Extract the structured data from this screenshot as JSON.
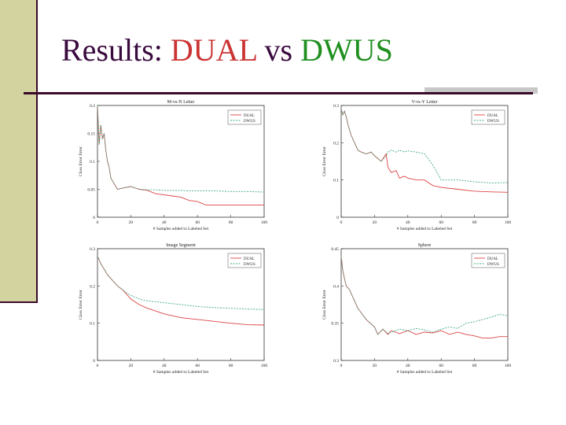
{
  "slide": {
    "title_prefix": "Results: ",
    "title_dual": "DUAL",
    "title_vs": " vs ",
    "title_dwus": "DWUS"
  },
  "colors": {
    "dual": "#dd4444",
    "dwus": "#44aa88",
    "early": "#667755"
  },
  "chart_data": [
    {
      "type": "line",
      "title": "M-vs-N Letter",
      "xlabel": "# Samples added to Labeled Set",
      "ylabel": "Class Error Error",
      "xlim": [
        0,
        100
      ],
      "ylim": [
        0,
        0.2
      ],
      "yticks": [
        0,
        0.05,
        0.1,
        0.15,
        0.2
      ],
      "xticks": [
        0,
        20,
        40,
        60,
        80,
        100
      ],
      "legend": "top-right",
      "series": [
        {
          "name": "DUAL",
          "x": [
            0,
            1,
            2,
            3,
            4,
            5,
            6,
            7,
            8,
            10,
            12,
            15,
            20,
            25,
            30,
            35,
            40,
            45,
            50,
            55,
            60,
            65,
            70,
            80,
            90,
            100
          ],
          "y": [
            0.2,
            0.13,
            0.165,
            0.14,
            0.15,
            0.12,
            0.1,
            0.09,
            0.07,
            0.06,
            0.05,
            0.052,
            0.055,
            0.05,
            0.048,
            0.042,
            0.04,
            0.038,
            0.036,
            0.03,
            0.028,
            0.022,
            0.022,
            0.022,
            0.022,
            0.022
          ]
        },
        {
          "name": "DWUS",
          "x": [
            0,
            1,
            2,
            3,
            4,
            5,
            6,
            7,
            8,
            10,
            12,
            15,
            20,
            25,
            30,
            35,
            40,
            45,
            50,
            55,
            60,
            65,
            70,
            80,
            90,
            100
          ],
          "y": [
            0.2,
            0.13,
            0.165,
            0.14,
            0.15,
            0.12,
            0.1,
            0.09,
            0.07,
            0.06,
            0.05,
            0.052,
            0.055,
            0.05,
            0.049,
            0.049,
            0.048,
            0.048,
            0.048,
            0.047,
            0.047,
            0.047,
            0.047,
            0.046,
            0.046,
            0.045
          ]
        }
      ]
    },
    {
      "type": "line",
      "title": "V-vs-Y Letter",
      "xlabel": "# Samples added to Labeled Set",
      "ylabel": "Class Error Error",
      "xlim": [
        0,
        100
      ],
      "ylim": [
        0,
        0.3
      ],
      "yticks": [
        0,
        0.1,
        0.2,
        0.3
      ],
      "xticks": [
        0,
        20,
        40,
        60,
        80,
        100
      ],
      "legend": "top-right",
      "series": [
        {
          "name": "DUAL",
          "x": [
            0,
            1,
            2,
            3,
            4,
            6,
            8,
            10,
            12,
            15,
            18,
            20,
            24,
            27,
            28,
            30,
            33,
            35,
            38,
            40,
            45,
            50,
            55,
            60,
            70,
            80,
            90,
            100
          ],
          "y": [
            0.29,
            0.275,
            0.285,
            0.27,
            0.25,
            0.22,
            0.2,
            0.18,
            0.175,
            0.17,
            0.175,
            0.165,
            0.15,
            0.17,
            0.135,
            0.12,
            0.125,
            0.105,
            0.11,
            0.105,
            0.1,
            0.1,
            0.085,
            0.08,
            0.075,
            0.07,
            0.068,
            0.067
          ]
        },
        {
          "name": "DWUS",
          "x": [
            0,
            1,
            2,
            3,
            4,
            6,
            8,
            10,
            12,
            15,
            18,
            20,
            24,
            27,
            28,
            30,
            33,
            35,
            38,
            40,
            45,
            50,
            55,
            60,
            70,
            80,
            90,
            100
          ],
          "y": [
            0.29,
            0.275,
            0.285,
            0.27,
            0.25,
            0.22,
            0.2,
            0.18,
            0.175,
            0.17,
            0.175,
            0.165,
            0.15,
            0.165,
            0.175,
            0.18,
            0.175,
            0.18,
            0.175,
            0.178,
            0.175,
            0.17,
            0.14,
            0.1,
            0.1,
            0.095,
            0.092,
            0.093
          ]
        }
      ]
    },
    {
      "type": "line",
      "title": "Image Segment",
      "xlabel": "# Samples added to Labeled Set",
      "ylabel": "Class Error Error",
      "xlim": [
        0,
        100
      ],
      "ylim": [
        0,
        0.3
      ],
      "yticks": [
        0,
        0.1,
        0.2,
        0.3
      ],
      "xticks": [
        0,
        20,
        40,
        60,
        80,
        100
      ],
      "legend": "top-right",
      "series": [
        {
          "name": "DUAL",
          "x": [
            0,
            1,
            2,
            4,
            6,
            8,
            10,
            12,
            15,
            18,
            20,
            25,
            30,
            40,
            50,
            60,
            70,
            80,
            90,
            100
          ],
          "y": [
            0.28,
            0.27,
            0.26,
            0.245,
            0.23,
            0.22,
            0.21,
            0.2,
            0.19,
            0.175,
            0.165,
            0.15,
            0.14,
            0.125,
            0.115,
            0.11,
            0.105,
            0.1,
            0.096,
            0.095
          ]
        },
        {
          "name": "DWUS",
          "x": [
            0,
            1,
            2,
            4,
            6,
            8,
            10,
            12,
            15,
            18,
            20,
            25,
            30,
            40,
            50,
            60,
            70,
            80,
            90,
            100
          ],
          "y": [
            0.28,
            0.27,
            0.26,
            0.245,
            0.23,
            0.22,
            0.21,
            0.2,
            0.19,
            0.18,
            0.175,
            0.165,
            0.16,
            0.155,
            0.15,
            0.145,
            0.142,
            0.14,
            0.138,
            0.137
          ]
        }
      ]
    },
    {
      "type": "line",
      "title": "Sphere",
      "xlabel": "# Samples added to Labeled Set",
      "ylabel": "Class Error Error",
      "xlim": [
        0,
        100
      ],
      "ylim": [
        0.3,
        0.45
      ],
      "yticks": [
        0.3,
        0.35,
        0.4,
        0.45
      ],
      "xticks": [
        0,
        20,
        40,
        60,
        80,
        100
      ],
      "legend": "top-right",
      "series": [
        {
          "name": "DUAL",
          "x": [
            0,
            1,
            2,
            3,
            5,
            8,
            10,
            15,
            20,
            22,
            25,
            28,
            30,
            35,
            40,
            45,
            50,
            55,
            60,
            65,
            70,
            75,
            80,
            85,
            90,
            95,
            100
          ],
          "y": [
            0.44,
            0.42,
            0.41,
            0.4,
            0.395,
            0.38,
            0.37,
            0.355,
            0.345,
            0.335,
            0.342,
            0.335,
            0.34,
            0.336,
            0.34,
            0.335,
            0.338,
            0.337,
            0.34,
            0.335,
            0.338,
            0.335,
            0.333,
            0.33,
            0.33,
            0.332,
            0.332
          ]
        },
        {
          "name": "DWUS",
          "x": [
            0,
            1,
            2,
            3,
            5,
            8,
            10,
            15,
            20,
            22,
            25,
            28,
            30,
            35,
            40,
            45,
            50,
            55,
            60,
            65,
            70,
            75,
            80,
            85,
            90,
            95,
            100
          ],
          "y": [
            0.44,
            0.42,
            0.41,
            0.4,
            0.395,
            0.38,
            0.37,
            0.355,
            0.345,
            0.335,
            0.342,
            0.336,
            0.338,
            0.342,
            0.34,
            0.343,
            0.341,
            0.338,
            0.342,
            0.345,
            0.343,
            0.35,
            0.352,
            0.355,
            0.358,
            0.362,
            0.36
          ]
        }
      ]
    }
  ]
}
